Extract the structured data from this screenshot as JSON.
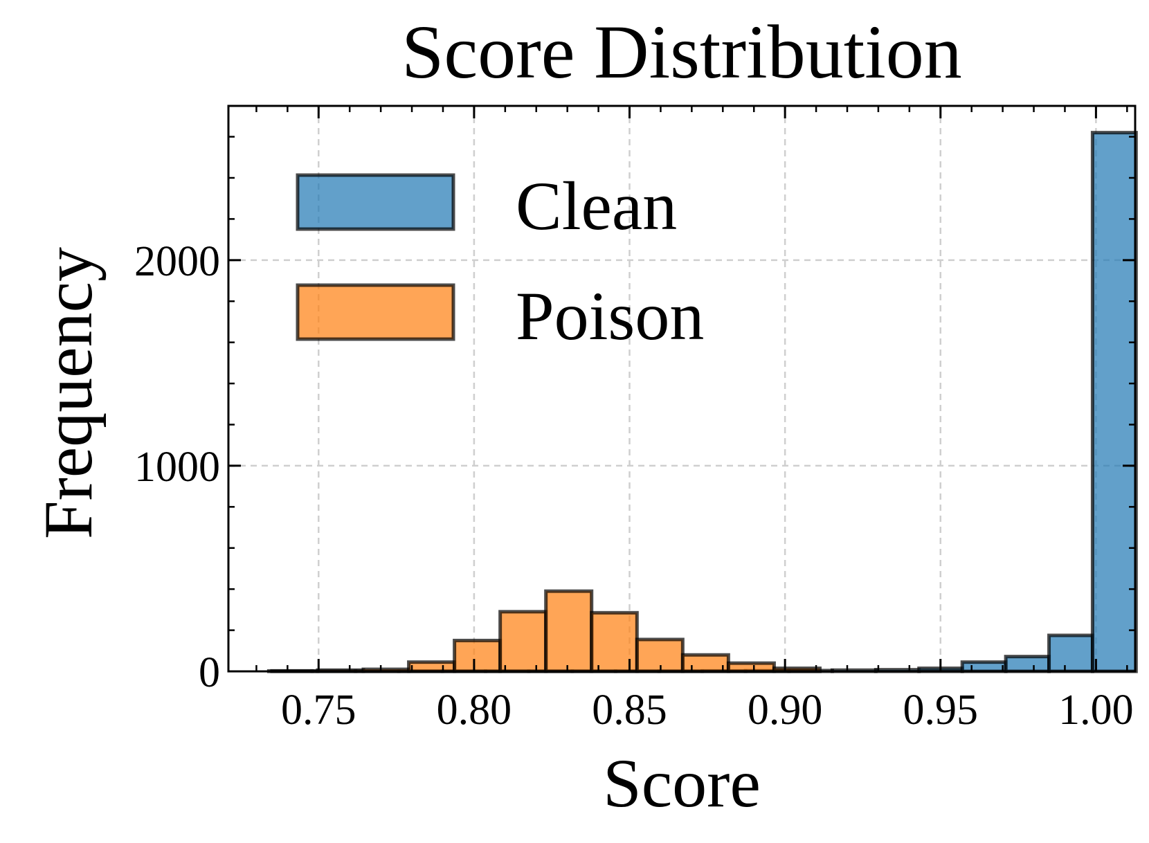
{
  "chart_data": {
    "type": "bar",
    "title": "Score Distribution",
    "xlabel": "Score",
    "ylabel": "Frequency",
    "xlim": [
      0.721,
      1.0126
    ],
    "ylim": [
      0,
      2750
    ],
    "x_ticks": [
      {
        "value": 0.75,
        "label": "0.75"
      },
      {
        "value": 0.8,
        "label": "0.80"
      },
      {
        "value": 0.85,
        "label": "0.85"
      },
      {
        "value": 0.9,
        "label": "0.90"
      },
      {
        "value": 0.95,
        "label": "0.95"
      },
      {
        "value": 1.0,
        "label": "1.00"
      }
    ],
    "y_ticks": [
      {
        "value": 0,
        "label": "0"
      },
      {
        "value": 1000,
        "label": "1000"
      },
      {
        "value": 2000,
        "label": "2000"
      }
    ],
    "y_minor_step": 200,
    "x_minor_step": 0.01,
    "grid": true,
    "legend_position": "upper-left",
    "series": [
      {
        "name": "Clean",
        "color": "#1f77b4",
        "bin_edges": [
          0.734,
          0.7479,
          0.7619,
          0.7758,
          0.7898,
          0.8037,
          0.8176,
          0.8316,
          0.8455,
          0.8595,
          0.8734,
          0.8873,
          0.9013,
          0.9152,
          0.9292,
          0.9431,
          0.957,
          0.971,
          0.9849,
          0.9989
        ],
        "values": [
          2,
          1,
          1,
          1,
          1,
          1,
          1,
          1,
          1,
          1,
          2,
          3,
          4,
          6,
          8,
          15,
          45,
          72,
          175,
          2620
        ]
      },
      {
        "name": "Poison",
        "color": "#ff7f0e",
        "bin_edges": [
          0.735,
          0.7497,
          0.7644,
          0.779,
          0.7937,
          0.8084,
          0.8231,
          0.8378,
          0.8524,
          0.8671,
          0.8818,
          0.8965,
          0.9112
        ],
        "values": [
          2,
          6,
          10,
          45,
          150,
          290,
          390,
          285,
          155,
          80,
          40,
          15
        ]
      }
    ]
  }
}
